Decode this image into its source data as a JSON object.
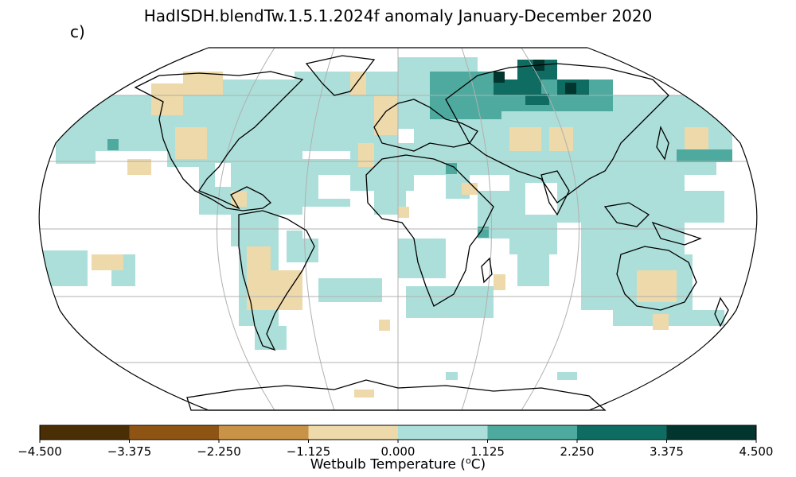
{
  "title": "HadISDH.blendTw.1.5.1.2024f anomaly January-December 2020",
  "panel_label": "c)",
  "colorbar": {
    "label": "Wetbulb Temperature (°C)",
    "label_prefix": "Wetbulb Temperature (",
    "label_sup": "o",
    "label_suffix": "C)",
    "ticks": [
      "-4.500",
      "-3.375",
      "-2.250",
      "-1.125",
      "0.000",
      "1.125",
      "2.250",
      "3.375",
      "4.500"
    ],
    "min": -4.5,
    "max": 4.5,
    "colors": [
      "#4a2f06",
      "#8e5413",
      "#c89346",
      "#edd9aa",
      "#acdfd9",
      "#4eaa9f",
      "#0e6c62",
      "#02352d"
    ]
  },
  "map": {
    "projection": "Robinson",
    "graticule": true
  }
}
